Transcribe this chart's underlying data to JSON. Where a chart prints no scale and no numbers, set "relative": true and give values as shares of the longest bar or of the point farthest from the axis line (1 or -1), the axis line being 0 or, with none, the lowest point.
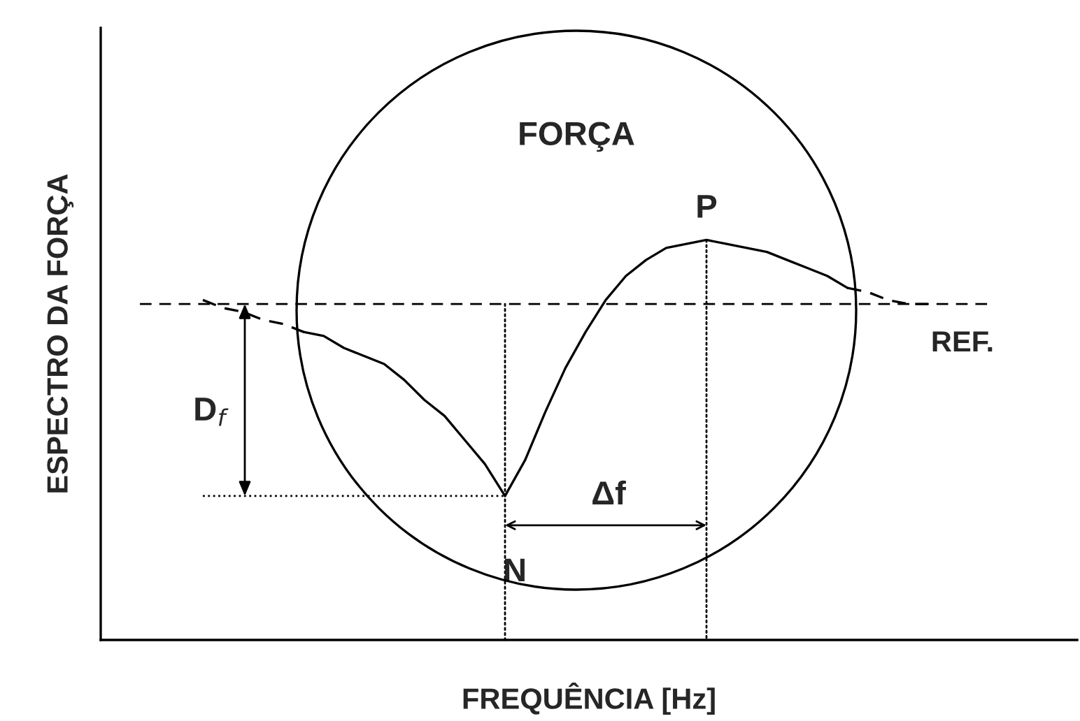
{
  "chart_data": {
    "type": "line",
    "relative": true,
    "xlabel": "FREQUÊNCIA [Hz]",
    "ylabel": "ESPECTRO DA FORÇA",
    "categories": [
      null,
      null,
      null,
      null,
      null,
      null,
      null,
      null,
      null,
      null,
      null,
      null,
      null,
      null,
      null,
      null,
      null,
      null,
      null,
      null,
      null,
      null,
      null,
      null,
      null,
      null,
      null,
      null,
      null,
      null,
      null,
      null,
      null,
      null,
      null,
      null,
      null
    ],
    "series": [
      {
        "color": "#000000",
        "line_style": "solid",
        "values": [
          null,
          null,
          null,
          null,
          null,
          0.77,
          0.76,
          0.73,
          0.71,
          0.69,
          0.65,
          0.6,
          0.56,
          0.5,
          0.44,
          0.36,
          0.45,
          0.57,
          0.68,
          0.77,
          0.85,
          0.91,
          0.95,
          0.98,
          0.99,
          1,
          0.99,
          0.98,
          0.97,
          0.95,
          0.93,
          0.91,
          0.88,
          null,
          null,
          null,
          null
        ]
      },
      {
        "color": "#000000",
        "line_style": "dashed",
        "values": [
          0.85,
          0.83,
          0.82,
          0.8,
          0.79,
          0.77,
          null,
          null,
          null,
          null,
          null,
          null,
          null,
          null,
          null,
          null,
          null,
          null,
          null,
          null,
          null,
          null,
          null,
          null,
          null,
          null,
          null,
          null,
          null,
          null,
          null,
          null,
          0.88,
          0.87,
          0.85,
          0.84,
          0.84
        ]
      }
    ],
    "ref_lines": [
      {
        "axis": "y",
        "value": 0.84,
        "label": "REF.",
        "line_style": "dashed",
        "color": "#000000"
      },
      {
        "axis": "y",
        "value": 0.36,
        "line_style": "dotted",
        "color": "#000000"
      }
    ],
    "annotations": [
      "FORÇA",
      "P",
      "N",
      "D$_{f}$",
      "Δf"
    ],
    "legend": false,
    "marker": "none"
  }
}
